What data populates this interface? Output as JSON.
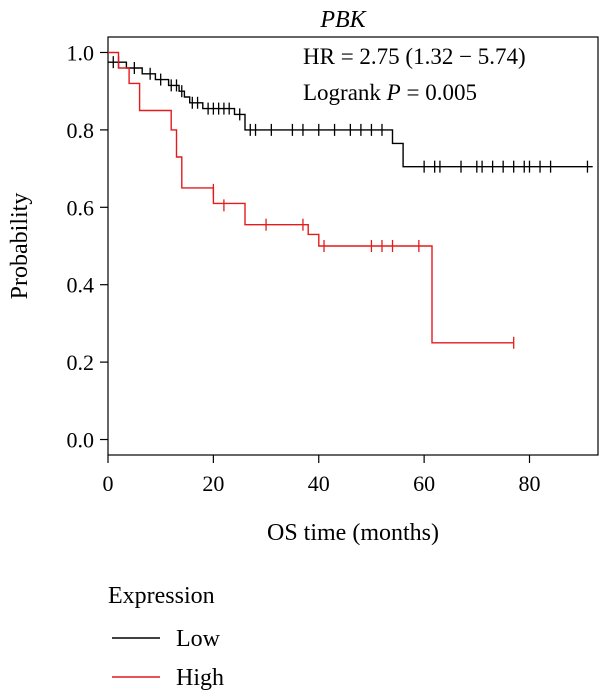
{
  "chart_data": {
    "type": "line",
    "subtype": "kaplan-meier",
    "title": "PBK",
    "annotations": {
      "hr_text": "HR = 2.75 (1.32 − 5.74)",
      "logrank_label": "Logrank ",
      "logrank_p_symbol": "P",
      "logrank_value": " = 0.005"
    },
    "xlabel": "OS time (months)",
    "ylabel": "Probability",
    "xlim": [
      0,
      93
    ],
    "ylim": [
      -0.04,
      1.04
    ],
    "xticks": [
      0,
      20,
      40,
      60,
      80
    ],
    "yticks": [
      0.0,
      0.2,
      0.4,
      0.6,
      0.8,
      1.0
    ],
    "ytick_labels": [
      "0.0",
      "0.2",
      "0.4",
      "0.6",
      "0.8",
      "1.0"
    ],
    "grid": false,
    "legend": {
      "title": "Expression",
      "placement": "bottom-left",
      "entries": [
        {
          "name": "Low",
          "color": "#000000"
        },
        {
          "name": "High",
          "color": "#e41a1c"
        }
      ]
    },
    "series": [
      {
        "name": "Low",
        "color": "#000000",
        "steps": [
          [
            0,
            0.975
          ],
          [
            3.5,
            0.96
          ],
          [
            6.5,
            0.945
          ],
          [
            9,
            0.93
          ],
          [
            11.5,
            0.915
          ],
          [
            13.5,
            0.9
          ],
          [
            14.5,
            0.885
          ],
          [
            15.5,
            0.87
          ],
          [
            18,
            0.855
          ],
          [
            24,
            0.84
          ],
          [
            26,
            0.8
          ],
          [
            54,
            0.765
          ],
          [
            56,
            0.705
          ],
          [
            92,
            0.705
          ]
        ],
        "censors": [
          [
            1,
            0.975
          ],
          [
            2,
            0.975
          ],
          [
            5,
            0.96
          ],
          [
            8,
            0.945
          ],
          [
            10,
            0.93
          ],
          [
            12,
            0.915
          ],
          [
            13,
            0.915
          ],
          [
            14,
            0.9
          ],
          [
            16,
            0.87
          ],
          [
            17,
            0.87
          ],
          [
            19,
            0.855
          ],
          [
            20,
            0.855
          ],
          [
            21,
            0.855
          ],
          [
            22,
            0.855
          ],
          [
            23,
            0.855
          ],
          [
            25,
            0.84
          ],
          [
            27,
            0.8
          ],
          [
            28,
            0.8
          ],
          [
            31,
            0.8
          ],
          [
            35,
            0.8
          ],
          [
            37,
            0.8
          ],
          [
            40,
            0.8
          ],
          [
            43,
            0.8
          ],
          [
            46,
            0.8
          ],
          [
            48,
            0.8
          ],
          [
            50,
            0.8
          ],
          [
            52,
            0.8
          ],
          [
            60,
            0.705
          ],
          [
            62,
            0.705
          ],
          [
            63,
            0.705
          ],
          [
            67,
            0.705
          ],
          [
            70,
            0.705
          ],
          [
            71,
            0.705
          ],
          [
            73,
            0.705
          ],
          [
            75,
            0.705
          ],
          [
            77,
            0.705
          ],
          [
            79,
            0.705
          ],
          [
            80,
            0.705
          ],
          [
            82,
            0.705
          ],
          [
            84,
            0.705
          ],
          [
            91,
            0.705
          ]
        ]
      },
      {
        "name": "High",
        "color": "#e41a1c",
        "steps": [
          [
            0,
            1.0
          ],
          [
            2,
            0.96
          ],
          [
            4,
            0.92
          ],
          [
            6,
            0.85
          ],
          [
            12,
            0.8
          ],
          [
            13,
            0.73
          ],
          [
            14,
            0.65
          ],
          [
            20,
            0.61
          ],
          [
            26,
            0.555
          ],
          [
            38,
            0.53
          ],
          [
            40,
            0.5
          ],
          [
            61.5,
            0.25
          ],
          [
            77,
            0.25
          ]
        ],
        "censors": [
          [
            20,
            0.645
          ],
          [
            22,
            0.605
          ],
          [
            30,
            0.555
          ],
          [
            37,
            0.555
          ],
          [
            41,
            0.5
          ],
          [
            50,
            0.5
          ],
          [
            52,
            0.5
          ],
          [
            54,
            0.5
          ],
          [
            59,
            0.5
          ],
          [
            77,
            0.25
          ]
        ]
      }
    ]
  }
}
